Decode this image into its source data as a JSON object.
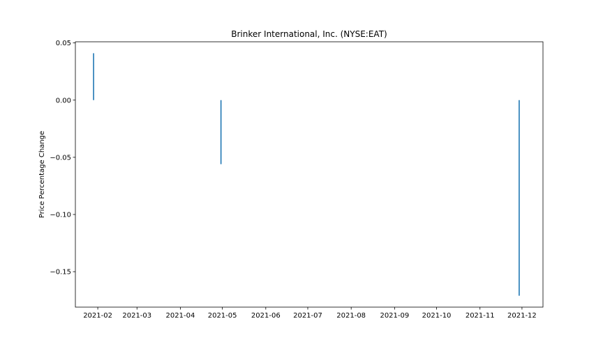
{
  "chart_data": {
    "type": "bar",
    "title": "Brinker International, Inc. (NYSE:EAT)",
    "xlabel": "",
    "ylabel": "Price Percentage Change",
    "x_tick_labels": [
      "2021-02",
      "2021-03",
      "2021-04",
      "2021-05",
      "2021-06",
      "2021-07",
      "2021-08",
      "2021-09",
      "2021-10",
      "2021-11",
      "2021-12"
    ],
    "y_ticks": [
      0.05,
      0.0,
      -0.05,
      -0.1,
      -0.15
    ],
    "y_tick_labels": [
      "0.05",
      "0.00",
      "−0.05",
      "−0.10",
      "−0.15"
    ],
    "xlim": [
      "2021-01-16",
      "2021-12-16"
    ],
    "ylim": [
      -0.181,
      0.051
    ],
    "grid": false,
    "series": [
      {
        "color": "#1f77b4",
        "points": [
          {
            "x": "2021-01-29",
            "y": 0.041
          },
          {
            "x": "2021-04-30",
            "y": -0.056
          },
          {
            "x": "2021-11-29",
            "y": -0.171
          }
        ]
      }
    ]
  }
}
